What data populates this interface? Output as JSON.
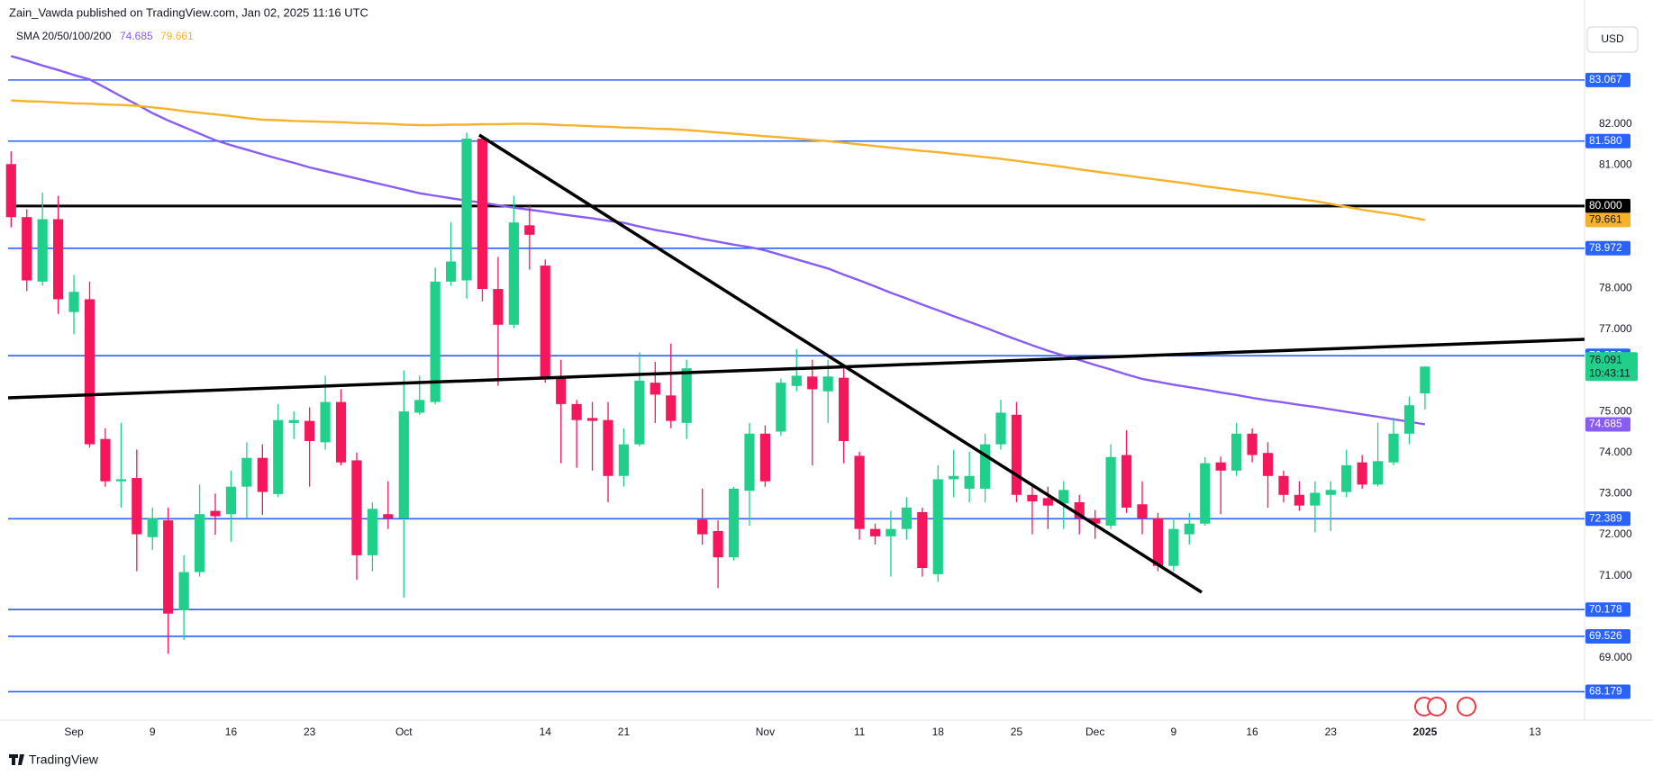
{
  "header": {
    "publisher": "Zain_Vawda published on TradingView.com, Jan 02, 2025 11:16 UTC",
    "currency": "USD",
    "brand": "TradingView"
  },
  "chart_data": {
    "type": "candlestick",
    "indicator_label": "SMA 20/50/100/200",
    "categories": [
      null,
      null,
      null,
      null,
      "Sep",
      null,
      null,
      null,
      null,
      "9",
      null,
      null,
      null,
      null,
      "16",
      null,
      null,
      null,
      null,
      "23",
      null,
      null,
      null,
      null,
      null,
      "Oct",
      null,
      null,
      null,
      null,
      null,
      null,
      null,
      null,
      "14",
      null,
      null,
      null,
      null,
      "21",
      null,
      null,
      null,
      null,
      null,
      null,
      null,
      null,
      "Nov",
      null,
      null,
      null,
      null,
      null,
      "11",
      null,
      null,
      null,
      null,
      "18",
      null,
      null,
      null,
      null,
      "25",
      null,
      null,
      null,
      null,
      "Dec",
      null,
      null,
      null,
      null,
      "9",
      null,
      null,
      null,
      null,
      "16",
      null,
      null,
      null,
      null,
      "23",
      null,
      null,
      null,
      null,
      null,
      "2025",
      null,
      null,
      null,
      null,
      null,
      null,
      "13"
    ],
    "open": [
      81.02,
      79.73,
      78.16,
      79.68,
      77.42,
      77.73,
      74.33,
      73.3,
      73.38,
      71.94,
      72.35,
      70.16,
      71.09,
      72.58,
      72.5,
      73.17,
      73.87,
      72.99,
      74.72,
      74.77,
      74.25,
      75.23,
      73.81,
      71.5,
      72.5,
      72.4,
      74.97,
      75.23,
      78.16,
      78.19,
      81.64,
      77.98,
      77.11,
      79.53,
      78.55,
      75.8,
      75.18,
      74.84,
      74.79,
      73.43,
      74.2,
      75.7,
      75.39,
      74.72,
      72.37,
      72.09,
      71.45,
      73.07,
      74.46,
      74.51,
      75.62,
      75.85,
      75.49,
      75.82,
      73.92,
      72.14,
      71.96,
      72.14,
      72.55,
      71.04,
      73.35,
      73.12,
      73.12,
      74.2,
      74.92,
      72.97,
      72.89,
      72.76,
      72.79,
      72.4,
      72.22,
      73.94,
      72.74,
      72.4,
      71.24,
      72.01,
      72.27,
      73.76,
      73.56,
      74.46,
      73.99,
      73.43,
      72.97,
      72.71,
      72.97,
      73.04,
      73.76,
      73.22,
      73.76,
      74.46,
      75.44,
      null,
      null,
      null,
      null,
      null,
      null,
      null
    ],
    "high": [
      81.33,
      79.92,
      80.33,
      80.25,
      78.32,
      78.16,
      74.59,
      74.72,
      74.07,
      72.66,
      72.66,
      71.5,
      73.22,
      73.0,
      73.56,
      74.25,
      74.2,
      75.18,
      75.0,
      75.1,
      75.87,
      75.54,
      74.0,
      72.79,
      73.3,
      76.0,
      75.87,
      78.5,
      79.6,
      81.79,
      81.72,
      78.76,
      80.25,
      80.0,
      78.7,
      76.26,
      75.28,
      75.23,
      75.23,
      74.59,
      76.44,
      76.21,
      76.65,
      76.26,
      73.12,
      72.35,
      73.17,
      74.72,
      74.66,
      75.8,
      76.52,
      76.26,
      76.26,
      76.13,
      74.02,
      72.27,
      72.58,
      72.91,
      72.66,
      73.69,
      74.07,
      74.02,
      74.46,
      75.28,
      75.23,
      73.17,
      73.17,
      73.3,
      72.97,
      72.6,
      74.2,
      74.54,
      73.3,
      72.53,
      72.4,
      72.53,
      73.89,
      73.9,
      74.72,
      74.59,
      74.25,
      73.56,
      73.3,
      73.3,
      73.3,
      74.07,
      73.94,
      74.72,
      74.85,
      75.36,
      76.1,
      null,
      null,
      null,
      null,
      null,
      null,
      null
    ],
    "low": [
      79.48,
      77.93,
      78.06,
      77.37,
      76.88,
      74.12,
      73.17,
      72.66,
      71.11,
      71.63,
      69.1,
      69.44,
      70.98,
      72.0,
      71.83,
      72.4,
      72.48,
      72.91,
      74.33,
      73.17,
      74.07,
      73.69,
      70.9,
      71.11,
      72.14,
      70.47,
      74.92,
      75.18,
      78.06,
      77.75,
      77.68,
      75.62,
      77.03,
      78.45,
      75.7,
      73.74,
      73.63,
      73.56,
      72.79,
      73.17,
      74.15,
      74.72,
      74.59,
      74.33,
      71.76,
      70.7,
      71.37,
      72.22,
      73.17,
      74.41,
      75.49,
      73.69,
      74.72,
      73.74,
      71.88,
      71.76,
      70.98,
      71.88,
      70.98,
      70.85,
      72.91,
      72.79,
      72.79,
      74.07,
      72.79,
      72.01,
      72.14,
      72.14,
      72.01,
      71.9,
      72.14,
      72.53,
      72.01,
      71.11,
      71.11,
      71.76,
      72.22,
      72.5,
      73.43,
      73.76,
      72.66,
      72.79,
      72.58,
      72.06,
      72.09,
      72.91,
      73.12,
      73.17,
      73.69,
      74.2,
      75.05,
      null,
      null,
      null,
      null,
      null,
      null,
      null
    ],
    "close": [
      79.73,
      78.19,
      79.68,
      77.73,
      77.91,
      74.2,
      73.3,
      73.35,
      72.01,
      72.4,
      70.08,
      71.09,
      72.5,
      72.45,
      73.17,
      73.87,
      73.04,
      74.79,
      74.79,
      74.28,
      75.23,
      73.76,
      71.5,
      72.63,
      72.4,
      75.0,
      75.28,
      78.16,
      78.65,
      81.64,
      77.98,
      77.11,
      79.6,
      79.3,
      75.8,
      75.18,
      74.79,
      74.77,
      73.43,
      74.2,
      75.75,
      75.41,
      74.77,
      76.05,
      72.01,
      71.45,
      73.12,
      74.46,
      73.3,
      75.7,
      75.87,
      75.54,
      75.85,
      74.28,
      72.14,
      71.96,
      72.14,
      72.66,
      71.19,
      73.35,
      73.43,
      73.43,
      74.2,
      74.97,
      72.97,
      72.81,
      72.71,
      73.09,
      72.4,
      72.27,
      73.89,
      72.66,
      72.4,
      71.24,
      72.14,
      72.27,
      73.74,
      73.56,
      74.46,
      73.94,
      73.43,
      72.97,
      72.71,
      73.02,
      73.09,
      73.69,
      73.22,
      73.79,
      74.46,
      75.15,
      76.091,
      null,
      null,
      null,
      null,
      null,
      null,
      null
    ],
    "up_color": "#1fcf8a",
    "down_color": "#f5175c",
    "countdown": "10:43:11",
    "series": [
      {
        "name": "SMA 100",
        "color": "#8a5cf6",
        "values": [
          83.65,
          83.54,
          83.42,
          83.31,
          83.19,
          83.08,
          82.88,
          82.67,
          82.47,
          82.26,
          82.08,
          81.92,
          81.76,
          81.6,
          81.48,
          81.37,
          81.26,
          81.15,
          81.05,
          80.94,
          80.85,
          80.76,
          80.67,
          80.58,
          80.49,
          80.4,
          80.31,
          80.25,
          80.19,
          80.13,
          80.08,
          80.02,
          79.96,
          79.91,
          79.86,
          79.8,
          79.75,
          79.7,
          79.64,
          79.59,
          79.5,
          79.42,
          79.35,
          79.28,
          79.2,
          79.13,
          79.06,
          79.0,
          78.92,
          78.81,
          78.7,
          78.59,
          78.48,
          78.33,
          78.19,
          78.04,
          77.89,
          77.75,
          77.6,
          77.46,
          77.32,
          77.18,
          77.04,
          76.89,
          76.75,
          76.61,
          76.48,
          76.36,
          76.25,
          76.13,
          76.02,
          75.9,
          75.79,
          75.72,
          75.65,
          75.59,
          75.53,
          75.46,
          75.4,
          75.33,
          75.27,
          75.22,
          75.16,
          75.11,
          75.05,
          74.99,
          74.93,
          74.87,
          74.81,
          74.75,
          74.685,
          null,
          null,
          null,
          null,
          null,
          null,
          null
        ]
      },
      {
        "name": "SMA 200",
        "color": "#f7b22b",
        "values": [
          82.57,
          82.55,
          82.54,
          82.52,
          82.5,
          82.49,
          82.47,
          82.46,
          82.44,
          82.4,
          82.36,
          82.31,
          82.27,
          82.23,
          82.19,
          82.14,
          82.1,
          82.09,
          82.07,
          82.06,
          82.05,
          82.04,
          82.02,
          82.01,
          82.0,
          81.98,
          81.97,
          81.97,
          81.98,
          81.98,
          81.99,
          81.99,
          82.0,
          82.0,
          81.99,
          81.97,
          81.96,
          81.94,
          81.93,
          81.91,
          81.9,
          81.88,
          81.87,
          81.85,
          81.82,
          81.79,
          81.76,
          81.73,
          81.7,
          81.67,
          81.64,
          81.61,
          81.58,
          81.54,
          81.5,
          81.46,
          81.42,
          81.38,
          81.34,
          81.31,
          81.27,
          81.23,
          81.19,
          81.15,
          81.1,
          81.05,
          81.0,
          80.95,
          80.89,
          80.84,
          80.79,
          80.74,
          80.69,
          80.64,
          80.59,
          80.54,
          80.48,
          80.43,
          80.38,
          80.33,
          80.28,
          80.22,
          80.17,
          80.12,
          80.05,
          79.98,
          79.91,
          79.85,
          79.8,
          79.73,
          79.661,
          null,
          null,
          null,
          null,
          null,
          null,
          null
        ]
      }
    ],
    "levels": [
      {
        "value": 83.067,
        "color": "#2962ff"
      },
      {
        "value": 81.58,
        "label": "81.580",
        "color": "#2962ff"
      },
      {
        "value": 80,
        "label": "80.000",
        "color": "#000000"
      },
      {
        "value": 78.972,
        "color": "#2962ff"
      },
      {
        "value": 76.356,
        "color": "#2962ff"
      },
      {
        "value": 72.389,
        "color": "#2962ff"
      },
      {
        "value": 70.178,
        "color": "#2962ff"
      },
      {
        "value": 69.526,
        "color": "#2962ff"
      },
      {
        "value": 68.179,
        "color": "#2962ff"
      }
    ],
    "ylim": [
      67.51,
      84.37
    ],
    "yticks": [
      {
        "value": 69,
        "label": "69.000"
      },
      {
        "value": 71,
        "label": "71.000"
      },
      {
        "value": 72,
        "label": "72.000"
      },
      {
        "value": 73,
        "label": "73.000"
      },
      {
        "value": 74,
        "label": "74.000"
      },
      {
        "value": 75,
        "label": "75.000"
      },
      {
        "value": 77,
        "label": "77.000"
      },
      {
        "value": 78,
        "label": "78.000"
      },
      {
        "value": 81,
        "label": "81.000"
      },
      {
        "value": 82,
        "label": "82.000"
      }
    ],
    "grid": false
  }
}
